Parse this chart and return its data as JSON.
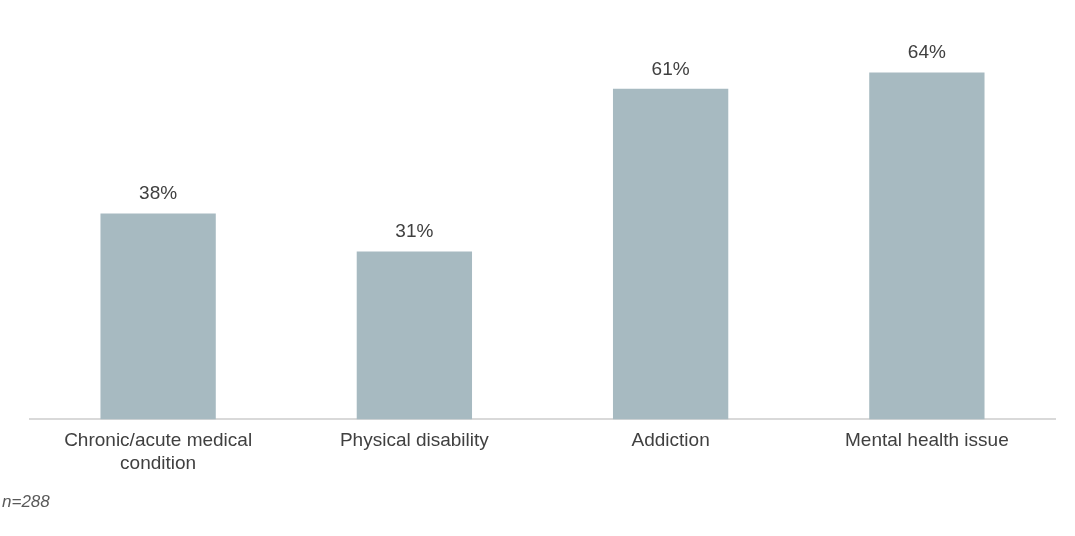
{
  "chart_data": {
    "type": "bar",
    "categories": [
      "Chronic/acute medical condition",
      "Physical disability",
      "Addiction",
      "Mental health issue"
    ],
    "values": [
      38,
      31,
      61,
      64
    ],
    "value_labels": [
      "38%",
      "31%",
      "61%",
      "64%"
    ],
    "color": "#a7bac1",
    "grid": false,
    "legend": false,
    "tick_labels": "x",
    "annotations": [
      "n=288"
    ]
  }
}
